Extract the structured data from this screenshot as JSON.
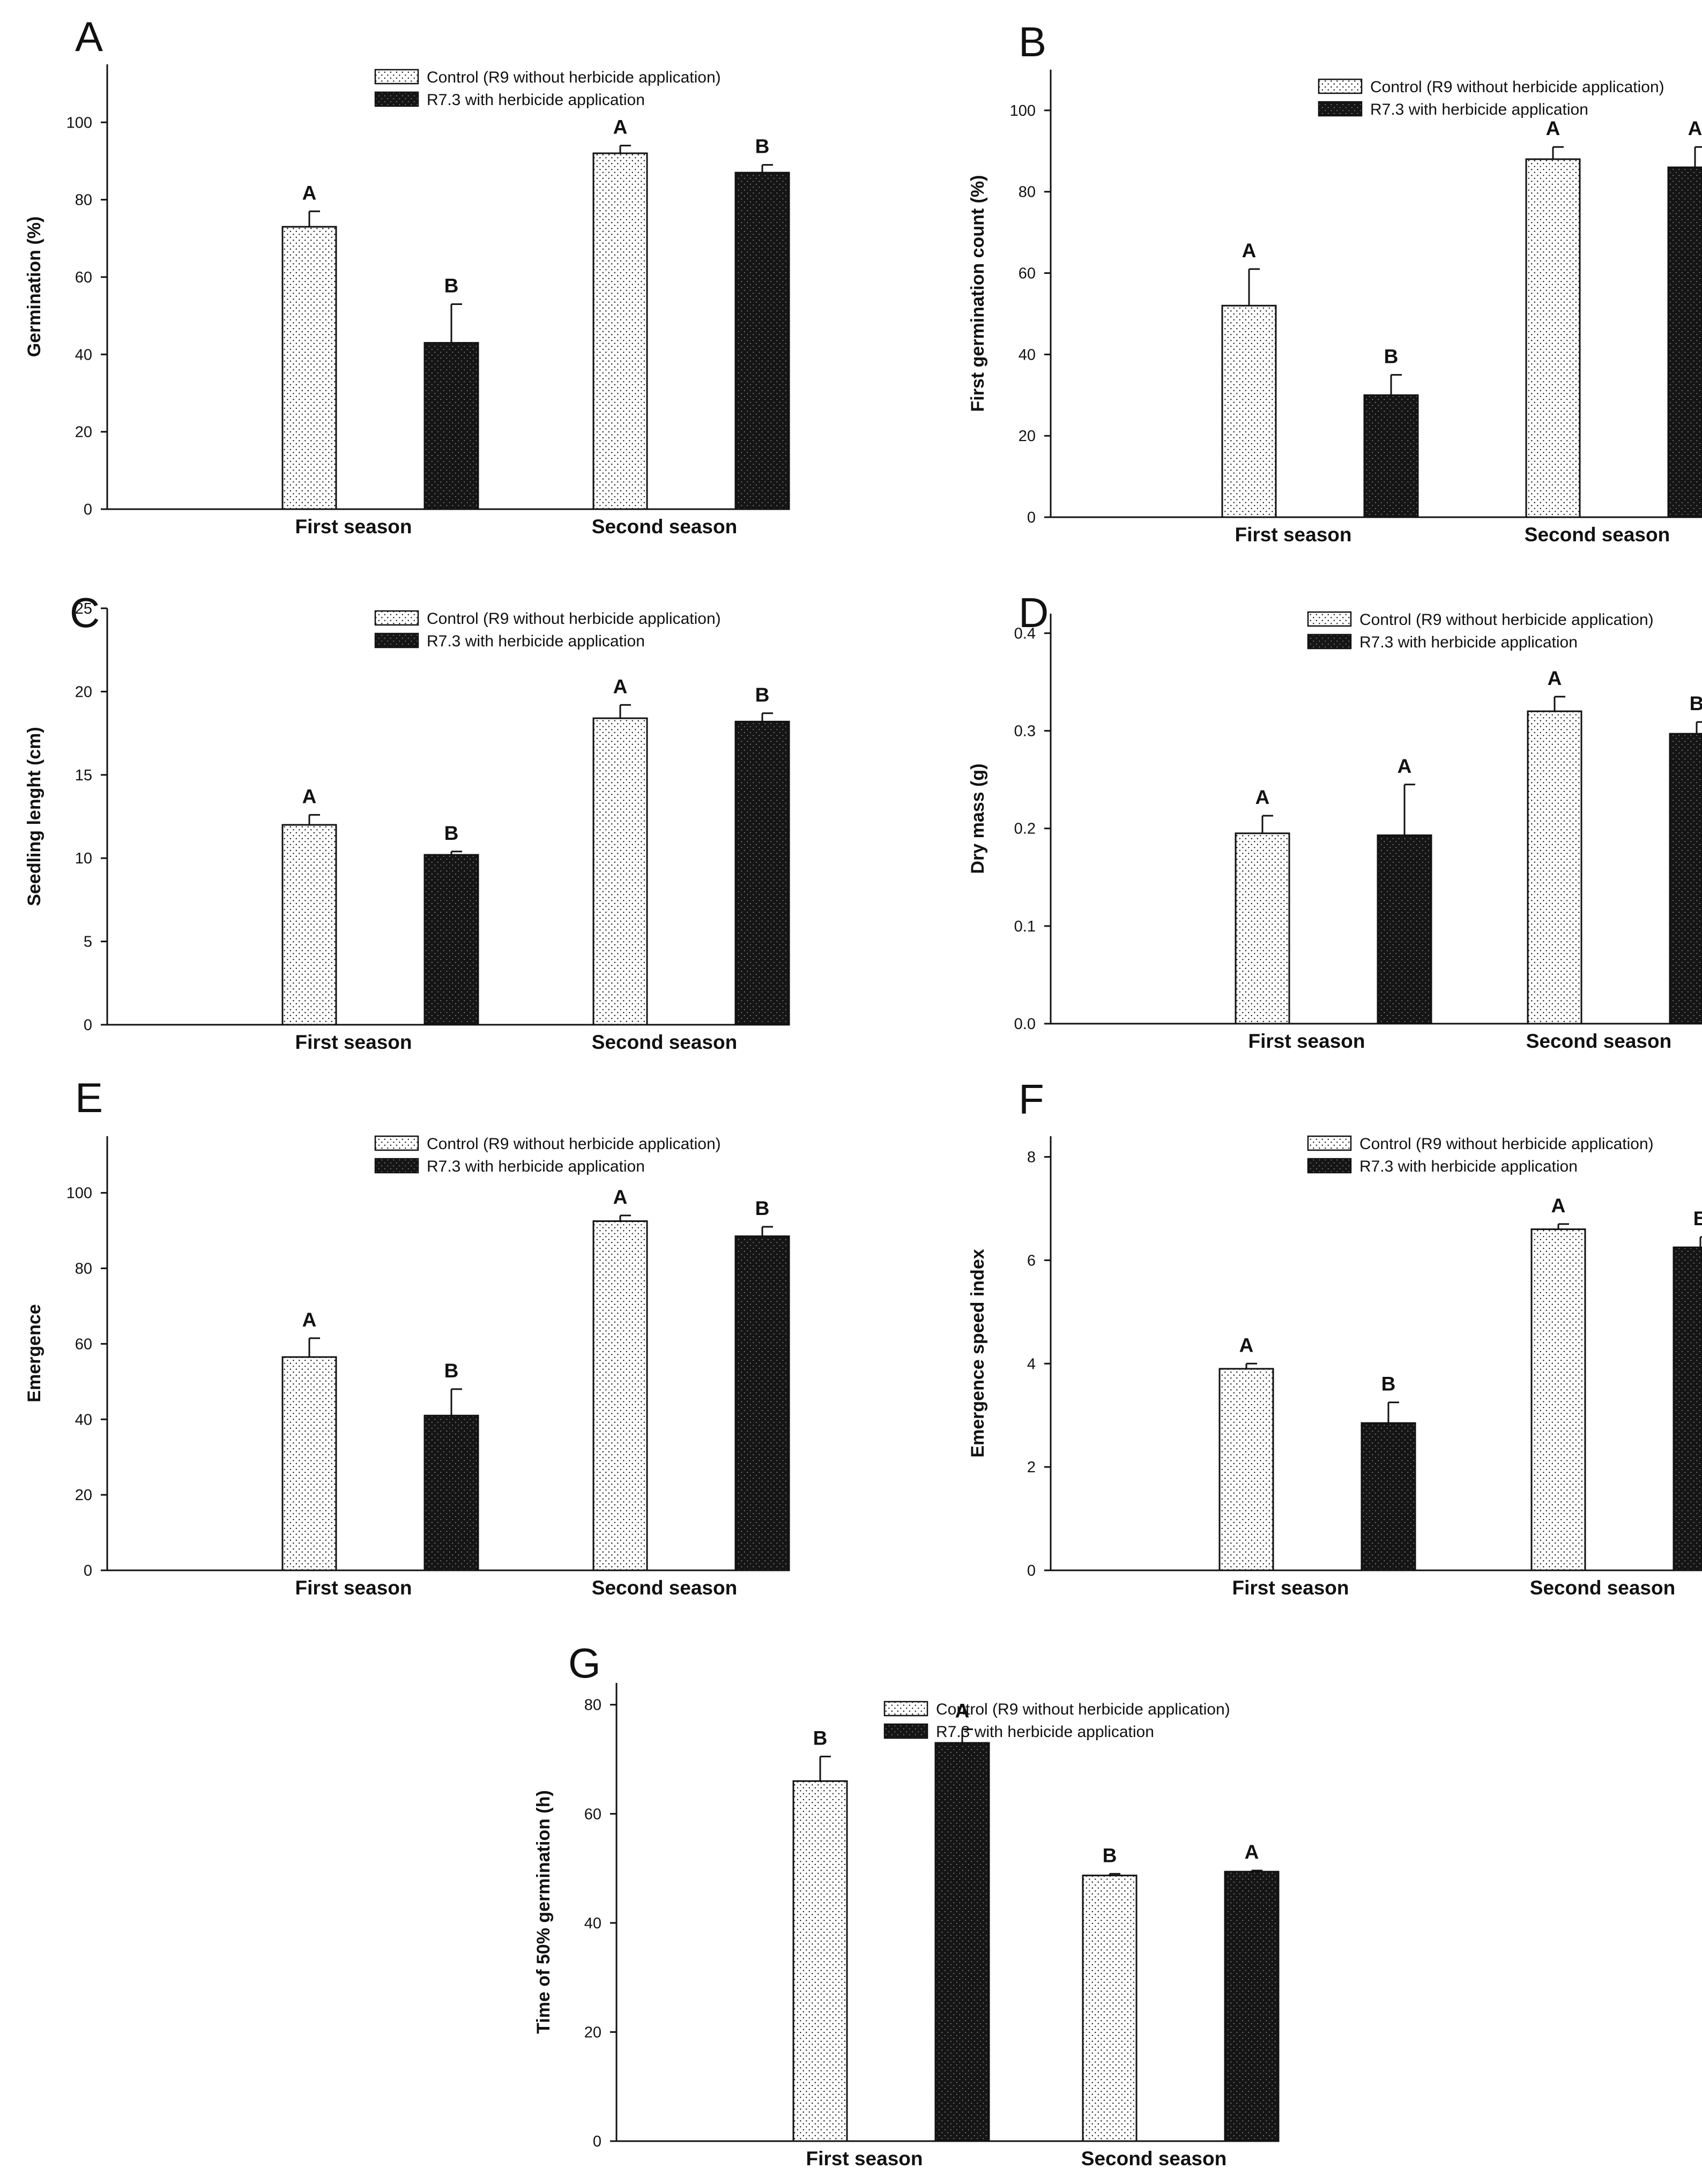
{
  "figure": {
    "legend_control": "Control (R9 without herbicide application)",
    "legend_herbicide": "R7.3 with herbicide application",
    "colors": {
      "control_bar": "#ffffff",
      "herbicide_bar": "#151515",
      "axis": "#111111"
    }
  },
  "chart_data": [
    {
      "id": "A",
      "type": "bar",
      "letter": "A",
      "title": "",
      "xlabel": "",
      "ylabel": "Germination (%)",
      "categories": [
        "First season",
        "Second season"
      ],
      "ylim": [
        0,
        115
      ],
      "yticks": [
        0,
        20,
        40,
        60,
        80,
        100
      ],
      "tick_labels": [
        "0",
        "20",
        "40",
        "60",
        "80",
        "100"
      ],
      "legend": "top-right",
      "series": [
        {
          "name": "Control (R9 without herbicide application)",
          "values": [
            73,
            92
          ],
          "errors": [
            4,
            2
          ],
          "letters": [
            "A",
            "A"
          ]
        },
        {
          "name": "R7.3 with herbicide application",
          "values": [
            43,
            87
          ],
          "errors": [
            10,
            2
          ],
          "letters": [
            "B",
            "B"
          ]
        }
      ]
    },
    {
      "id": "B",
      "type": "bar",
      "letter": "B",
      "title": "",
      "xlabel": "",
      "ylabel": "First germination count (%)",
      "categories": [
        "First season",
        "Second season"
      ],
      "ylim": [
        0,
        110
      ],
      "yticks": [
        0,
        20,
        40,
        60,
        80,
        100
      ],
      "tick_labels": [
        "0",
        "20",
        "40",
        "60",
        "80",
        "100"
      ],
      "legend": "top-right",
      "series": [
        {
          "name": "Control (R9 without herbicide application)",
          "values": [
            52,
            88
          ],
          "errors": [
            9,
            3
          ],
          "letters": [
            "A",
            "A"
          ]
        },
        {
          "name": "R7.3 with herbicide application",
          "values": [
            30,
            86
          ],
          "errors": [
            5,
            5
          ],
          "letters": [
            "B",
            "A"
          ]
        }
      ]
    },
    {
      "id": "C",
      "type": "bar",
      "letter": "C",
      "title": "",
      "xlabel": "",
      "ylabel": "Seedling lenght (cm)",
      "categories": [
        "First season",
        "Second season"
      ],
      "ylim": [
        0,
        25
      ],
      "yticks": [
        0,
        5,
        10,
        15,
        20,
        25
      ],
      "tick_labels": [
        "0",
        "5",
        "10",
        "15",
        "20",
        "25"
      ],
      "legend": "top-right",
      "series": [
        {
          "name": "Control (R9 without herbicide application)",
          "values": [
            12,
            18.4
          ],
          "errors": [
            0.6,
            0.8
          ],
          "letters": [
            "A",
            "A"
          ]
        },
        {
          "name": "R7.3 with herbicide application",
          "values": [
            10.2,
            18.2
          ],
          "errors": [
            0.2,
            0.5
          ],
          "letters": [
            "B",
            "B"
          ]
        }
      ]
    },
    {
      "id": "D",
      "type": "bar",
      "letter": "D",
      "title": "",
      "xlabel": "",
      "ylabel": "Dry mass (g)",
      "categories": [
        "First season",
        "Second season"
      ],
      "ylim": [
        0,
        0.42
      ],
      "yticks": [
        0,
        0.1,
        0.2,
        0.3,
        0.4
      ],
      "tick_labels": [
        "0.0",
        "0.1",
        "0.2",
        "0.3",
        "0.4"
      ],
      "legend": "top-right",
      "series": [
        {
          "name": "Control (R9 without herbicide application)",
          "values": [
            0.195,
            0.32
          ],
          "errors": [
            0.018,
            0.015
          ],
          "letters": [
            "A",
            "A"
          ]
        },
        {
          "name": "R7.3 with herbicide application",
          "values": [
            0.193,
            0.297
          ],
          "errors": [
            0.052,
            0.012
          ],
          "letters": [
            "A",
            "B"
          ]
        }
      ]
    },
    {
      "id": "E",
      "type": "bar",
      "letter": "E",
      "title": "",
      "xlabel": "",
      "ylabel": "Emergence",
      "categories": [
        "First season",
        "Second season"
      ],
      "ylim": [
        0,
        115
      ],
      "yticks": [
        0,
        20,
        40,
        60,
        80,
        100
      ],
      "tick_labels": [
        "0",
        "20",
        "40",
        "60",
        "80",
        "100"
      ],
      "legend": "top-right",
      "series": [
        {
          "name": "Control (R9 without herbicide application)",
          "values": [
            56.5,
            92.5
          ],
          "errors": [
            5,
            1.5
          ],
          "letters": [
            "A",
            "A"
          ]
        },
        {
          "name": "R7.3 with herbicide application",
          "values": [
            41,
            88.5
          ],
          "errors": [
            7,
            2.5
          ],
          "letters": [
            "B",
            "B"
          ]
        }
      ]
    },
    {
      "id": "F",
      "type": "bar",
      "letter": "F",
      "title": "",
      "xlabel": "",
      "ylabel": "Emergence speed index",
      "categories": [
        "First season",
        "Second season"
      ],
      "ylim": [
        0,
        8.4
      ],
      "yticks": [
        0,
        2,
        4,
        6,
        8
      ],
      "tick_labels": [
        "0",
        "2",
        "4",
        "6",
        "8"
      ],
      "legend": "top-right",
      "series": [
        {
          "name": "Control (R9 without herbicide application)",
          "values": [
            3.9,
            6.6
          ],
          "errors": [
            0.1,
            0.1
          ],
          "letters": [
            "A",
            "A"
          ]
        },
        {
          "name": "R7.3 with herbicide application",
          "values": [
            2.85,
            6.25
          ],
          "errors": [
            0.4,
            0.2
          ],
          "letters": [
            "B",
            "B"
          ]
        }
      ]
    },
    {
      "id": "G",
      "type": "bar",
      "letter": "G",
      "title": "",
      "xlabel": "",
      "ylabel": "Time of 50% germination (h)",
      "categories": [
        "First season",
        "Second season"
      ],
      "ylim": [
        0,
        84
      ],
      "yticks": [
        0,
        20,
        40,
        60,
        80
      ],
      "tick_labels": [
        "0",
        "20",
        "40",
        "60",
        "80"
      ],
      "legend": "top-right",
      "series": [
        {
          "name": "Control (R9 without herbicide application)",
          "values": [
            66,
            48.7
          ],
          "errors": [
            4.5,
            0.3
          ],
          "letters": [
            "B",
            "B"
          ]
        },
        {
          "name": "R7.3 with herbicide application",
          "values": [
            73,
            49.4
          ],
          "errors": [
            2.5,
            0.2
          ],
          "letters": [
            "A",
            "A"
          ]
        }
      ]
    }
  ]
}
